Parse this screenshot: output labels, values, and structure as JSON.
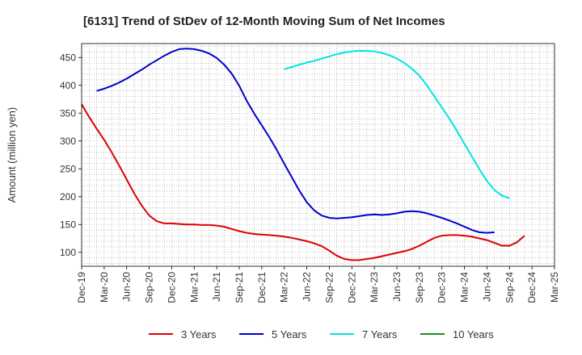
{
  "chart_data": {
    "type": "line",
    "title": "[6131]  Trend of StDev of 12-Month Moving Sum of Net Incomes",
    "ylabel": "Amount (million yen)",
    "xlabel": "",
    "ylim": [
      75,
      475
    ],
    "yticks": [
      100,
      150,
      200,
      250,
      300,
      350,
      400,
      450
    ],
    "xticks": [
      "Dec-19",
      "Mar-20",
      "Jun-20",
      "Sep-20",
      "Dec-20",
      "Mar-21",
      "Jun-21",
      "Sep-21",
      "Dec-21",
      "Mar-22",
      "Jun-22",
      "Sep-22",
      "Dec-22",
      "Mar-23",
      "Jun-23",
      "Sep-23",
      "Dec-23",
      "Mar-24",
      "Jun-24",
      "Sep-24",
      "Dec-24",
      "Mar-25"
    ],
    "grid": true,
    "legend_position": "bottom",
    "x_start": "2019-12",
    "series": [
      {
        "name": "3 Years",
        "color": "#dd0000",
        "start": "2019-12",
        "values": [
          366,
          343,
          322,
          302,
          280,
          256,
          231,
          206,
          184,
          166,
          156,
          152,
          152,
          151,
          150,
          150,
          149,
          149,
          148,
          146,
          142,
          138,
          135,
          133,
          132,
          131,
          130,
          128,
          126,
          123,
          120,
          116,
          111,
          103,
          94,
          88,
          86,
          86,
          88,
          90,
          93,
          96,
          99,
          102,
          106,
          112,
          119,
          126,
          130,
          131,
          131,
          130,
          128,
          125,
          122,
          117,
          112,
          112,
          118,
          130
        ]
      },
      {
        "name": "5 Years",
        "color": "#0000cc",
        "start": "2020-02",
        "values": [
          390,
          394,
          399,
          405,
          412,
          420,
          428,
          437,
          445,
          453,
          460,
          465,
          466,
          465,
          462,
          457,
          449,
          437,
          421,
          399,
          372,
          349,
          328,
          307,
          284,
          259,
          235,
          211,
          190,
          175,
          166,
          162,
          161,
          162,
          163,
          165,
          167,
          168,
          167,
          168,
          170,
          173,
          174,
          173,
          170,
          166,
          162,
          157,
          152,
          146,
          140,
          136,
          135,
          136
        ]
      },
      {
        "name": "7 Years",
        "color": "#00e5e5",
        "start": "2022-03",
        "values": [
          429,
          433,
          437,
          441,
          444,
          448,
          452,
          456,
          459,
          461,
          462,
          462,
          461,
          458,
          454,
          448,
          440,
          430,
          417,
          400,
          380,
          360,
          340,
          318,
          295,
          272,
          249,
          228,
          212,
          202,
          197
        ]
      },
      {
        "name": "10 Years",
        "color": "#228b22",
        "start": "2019-12",
        "values": []
      }
    ]
  }
}
